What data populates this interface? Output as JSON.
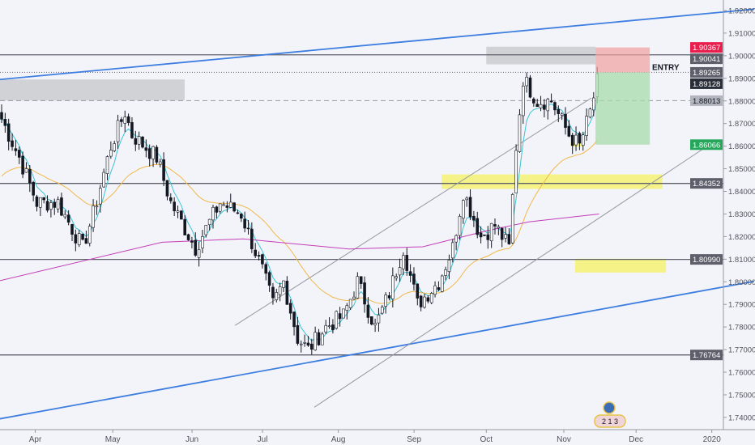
{
  "chart_data": {
    "type": "candlestick",
    "symbol_hint": "daily",
    "price_range": [
      1.735,
      1.925
    ],
    "price_ticks": [
      "1.92000",
      "1.91000",
      "1.90000",
      "1.89000",
      "1.88000",
      "1.87000",
      "1.86000",
      "1.85000",
      "1.84000",
      "1.83000",
      "1.82000",
      "1.81000",
      "1.80000",
      "1.79000",
      "1.78000",
      "1.77000",
      "1.76000",
      "1.75000",
      "1.74000"
    ],
    "tick_values": [
      1.92,
      1.91,
      1.9,
      1.89,
      1.88,
      1.87,
      1.86,
      1.85,
      1.84,
      1.83,
      1.82,
      1.81,
      1.8,
      1.79,
      1.78,
      1.77,
      1.76,
      1.75,
      1.74
    ],
    "time_labels": [
      {
        "t": "Apr",
        "i": 10
      },
      {
        "t": "May",
        "i": 32
      },
      {
        "t": "Jun",
        "i": 54.5
      },
      {
        "t": "Jul",
        "i": 74.5
      },
      {
        "t": "Aug",
        "i": 96
      },
      {
        "t": "Sep",
        "i": 117.5
      },
      {
        "t": "Oct",
        "i": 138
      },
      {
        "t": "Nov",
        "i": 160
      },
      {
        "t": "Dec",
        "i": 180.5
      },
      {
        "t": "2020",
        "i": 202
      }
    ],
    "candle_count": 170,
    "close_path": [
      [
        0,
        1.872
      ],
      [
        5,
        1.855
      ],
      [
        10,
        1.835
      ],
      [
        16,
        1.835
      ],
      [
        23,
        1.815
      ],
      [
        26,
        1.83
      ],
      [
        31,
        1.86
      ],
      [
        35,
        1.875
      ],
      [
        37,
        1.865
      ],
      [
        44,
        1.855
      ],
      [
        48,
        1.835
      ],
      [
        55,
        1.815
      ],
      [
        62,
        1.835
      ],
      [
        68,
        1.83
      ],
      [
        74,
        1.805
      ],
      [
        77,
        1.79
      ],
      [
        80,
        1.8
      ],
      [
        84,
        1.775
      ],
      [
        87,
        1.77
      ],
      [
        92,
        1.78
      ],
      [
        97,
        1.785
      ],
      [
        101,
        1.8
      ],
      [
        106,
        1.78
      ],
      [
        110,
        1.795
      ],
      [
        114,
        1.815
      ],
      [
        118,
        1.79
      ],
      [
        124,
        1.8
      ],
      [
        128,
        1.815
      ],
      [
        131,
        1.84
      ],
      [
        136,
        1.82
      ],
      [
        140,
        1.825
      ],
      [
        144,
        1.815
      ],
      [
        146,
        1.86
      ],
      [
        148,
        1.89
      ],
      [
        152,
        1.88
      ],
      [
        156,
        1.88
      ],
      [
        161,
        1.865
      ],
      [
        164,
        1.86
      ],
      [
        167,
        1.875
      ],
      [
        170,
        1.895
      ]
    ],
    "moving_averages": [
      {
        "name": "EMA fast",
        "color": "#3bc4d4",
        "period": 5
      },
      {
        "name": "EMA medium",
        "color": "#f0b84a",
        "period": 30
      },
      {
        "name": "MA slow",
        "color": "#c43fb8",
        "points": [
          [
            0,
            1.8005
          ],
          [
            46,
            1.8175
          ],
          [
            69,
            1.819
          ],
          [
            99,
            1.8145
          ],
          [
            120,
            1.8155
          ],
          [
            138,
            1.8225
          ],
          [
            150,
            1.8265
          ],
          [
            170,
            1.83
          ]
        ]
      }
    ],
    "horizontal_levels": [
      {
        "price": 1.90041,
        "label": "1.90041",
        "style": "solid",
        "color": "#5d606b"
      },
      {
        "price": 1.84352,
        "label": "1.84352",
        "style": "solid",
        "color": "#5d606b"
      },
      {
        "price": 1.8099,
        "label": "1.80990",
        "style": "solid",
        "color": "#5d606b"
      },
      {
        "price": 1.76764,
        "label": "1.76764",
        "style": "solid",
        "color": "#5d606b"
      },
      {
        "price": 1.88013,
        "label": "1.88013",
        "style": "dashed",
        "color": "#9598a1"
      },
      {
        "price": 1.89265,
        "label": "1.89265",
        "style": "dotted",
        "color": "#5d606b"
      }
    ],
    "price_tags": [
      {
        "label": "1.90367",
        "price": 1.90367,
        "color": "#e91e4d"
      },
      {
        "label": "1.90041",
        "price": 1.90041,
        "color": "#5d606b"
      },
      {
        "label": "1.89265",
        "price": 1.89265,
        "color": "#5d606b"
      },
      {
        "label": "1.89128",
        "price": 1.89128,
        "color": "#2a2e39"
      },
      {
        "label": "1.88013",
        "price": 1.88013,
        "color": "#b2b5be",
        "text": "#131722"
      },
      {
        "label": "1.86066",
        "price": 1.86066,
        "color": "#26a65b"
      },
      {
        "label": "1.84352",
        "price": 1.84352,
        "color": "#5d606b"
      },
      {
        "label": "1.80990",
        "price": 1.8099,
        "color": "#5d606b"
      },
      {
        "label": "1.76764",
        "price": 1.76764,
        "color": "#5d606b"
      }
    ],
    "trend_lines": [
      {
        "color": "#3d7ee0",
        "from": [
          0,
          1.8895
        ],
        "to": [
          214,
          1.9206
        ]
      },
      {
        "color": "#3d7ee0",
        "from": [
          0,
          1.7394
        ],
        "to": [
          214,
          1.8002
        ]
      },
      {
        "color": "#9598a1",
        "from": [
          66.7,
          1.7807
        ],
        "to": [
          167.8,
          1.8813
        ]
      },
      {
        "color": "#9598a1",
        "from": [
          89.2,
          1.7445
        ],
        "to": [
          200.7,
          1.86
        ]
      }
    ],
    "zones": [
      {
        "color": "#c8c9cd",
        "from": [
          0,
          1.8895
        ],
        "to": [
          52.4,
          1.8802
        ]
      },
      {
        "color": "#c8c9cd",
        "from": [
          138,
          1.904
        ],
        "to": [
          169,
          1.8962
        ]
      },
      {
        "color": "#f5f26a",
        "from": [
          125.3,
          1.8475
        ],
        "to": [
          188,
          1.8411
        ]
      },
      {
        "color": "#f5f26a",
        "from": [
          163.2,
          1.8102
        ],
        "to": [
          189,
          1.8041
        ]
      },
      {
        "color": "#f5f26a",
        "from": [
          162,
          1.8616
        ],
        "to": [
          165.5,
          1.8598
        ]
      }
    ],
    "position": {
      "entry_label": "ENTRY",
      "entry": 1.89265,
      "stop": 1.90367,
      "target": 1.86066,
      "from": 169,
      "to": 184.4
    }
  },
  "events_badge": "2 1 3"
}
